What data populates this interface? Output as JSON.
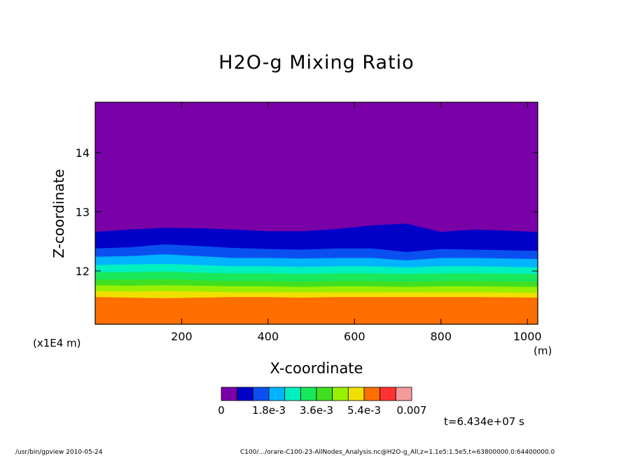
{
  "chart_data": {
    "type": "heatmap",
    "title": "H2O-g Mixing Ratio",
    "xlabel": "X-coordinate",
    "ylabel": "Z-coordinate",
    "x_unit": "(m)",
    "y_scale_note": "(x1E4 m)",
    "xlim": [
      0,
      1024
    ],
    "ylim": [
      11.1,
      14.85
    ],
    "x_ticks": [
      200,
      400,
      600,
      800,
      1000
    ],
    "y_ticks": [
      12,
      13,
      14
    ],
    "colorbar": {
      "levels": [
        0,
        0.0007,
        0.0011,
        0.0018,
        0.0024,
        0.003,
        0.0036,
        0.0042,
        0.0048,
        0.0054,
        0.006,
        0.0066,
        0.007
      ],
      "labels": [
        "0",
        "1.8e-3",
        "3.6e-3",
        "5.4e-3",
        "0.007"
      ],
      "label_values": [
        0,
        0.0018,
        0.0036,
        0.0054,
        0.007
      ],
      "colors": [
        "#7a00a8",
        "#0000c8",
        "#0a50f0",
        "#00b4ff",
        "#00f0c0",
        "#18e85a",
        "#40e020",
        "#98f000",
        "#f0e000",
        "#ff6e00",
        "#ff3232",
        "#f59a9a"
      ]
    },
    "contour_boundaries_z": [
      {
        "between": "0/1",
        "z": [
          12.66,
          12.7,
          12.73,
          12.72,
          12.7,
          12.67,
          12.67,
          12.71,
          12.77,
          12.8,
          12.66,
          12.7,
          12.66
        ]
      },
      {
        "between": "1/2",
        "z": [
          12.38,
          12.4,
          12.45,
          12.42,
          12.39,
          12.37,
          12.36,
          12.38,
          12.38,
          12.32,
          12.37,
          12.36,
          12.34
        ]
      },
      {
        "between": "2/3",
        "z": [
          12.24,
          12.25,
          12.28,
          12.25,
          12.22,
          12.22,
          12.21,
          12.22,
          12.22,
          12.18,
          12.22,
          12.22,
          12.2
        ]
      },
      {
        "between": "3/4",
        "z": [
          12.1,
          12.11,
          12.12,
          12.1,
          12.08,
          12.08,
          12.07,
          12.08,
          12.08,
          12.06,
          12.08,
          12.08,
          12.06
        ]
      },
      {
        "between": "4/5",
        "z": [
          11.98,
          11.98,
          11.99,
          11.97,
          11.96,
          11.96,
          11.95,
          11.96,
          11.96,
          11.95,
          11.96,
          11.96,
          11.95
        ]
      },
      {
        "between": "5/6",
        "z": [
          11.85,
          11.85,
          11.86,
          11.84,
          11.83,
          11.83,
          11.82,
          11.83,
          11.83,
          11.82,
          11.83,
          11.83,
          11.82
        ]
      },
      {
        "between": "6/7",
        "z": [
          11.76,
          11.75,
          11.76,
          11.75,
          11.74,
          11.74,
          11.73,
          11.74,
          11.74,
          11.73,
          11.74,
          11.74,
          11.73
        ]
      },
      {
        "between": "7/8",
        "z": [
          11.66,
          11.65,
          11.66,
          11.65,
          11.64,
          11.64,
          11.64,
          11.64,
          11.64,
          11.64,
          11.64,
          11.64,
          11.63
        ]
      },
      {
        "between": "8/9",
        "z": [
          11.56,
          11.55,
          11.54,
          11.55,
          11.56,
          11.56,
          11.55,
          11.56,
          11.56,
          11.56,
          11.56,
          11.56,
          11.55
        ]
      }
    ],
    "boundary_x": [
      0,
      80,
      160,
      240,
      320,
      400,
      480,
      560,
      640,
      720,
      800,
      880,
      1024
    ]
  },
  "annotations": {
    "time": "t=6.434e+07 s",
    "footer_left": "/usr/bin/gpview   2010-05-24",
    "footer_right": "C100/.../orare-C100-23-AllNodes_Analysis.nc@H2O-g_All,z=1.1e5:1.5e5,t=63800000.0:64400000.0"
  }
}
